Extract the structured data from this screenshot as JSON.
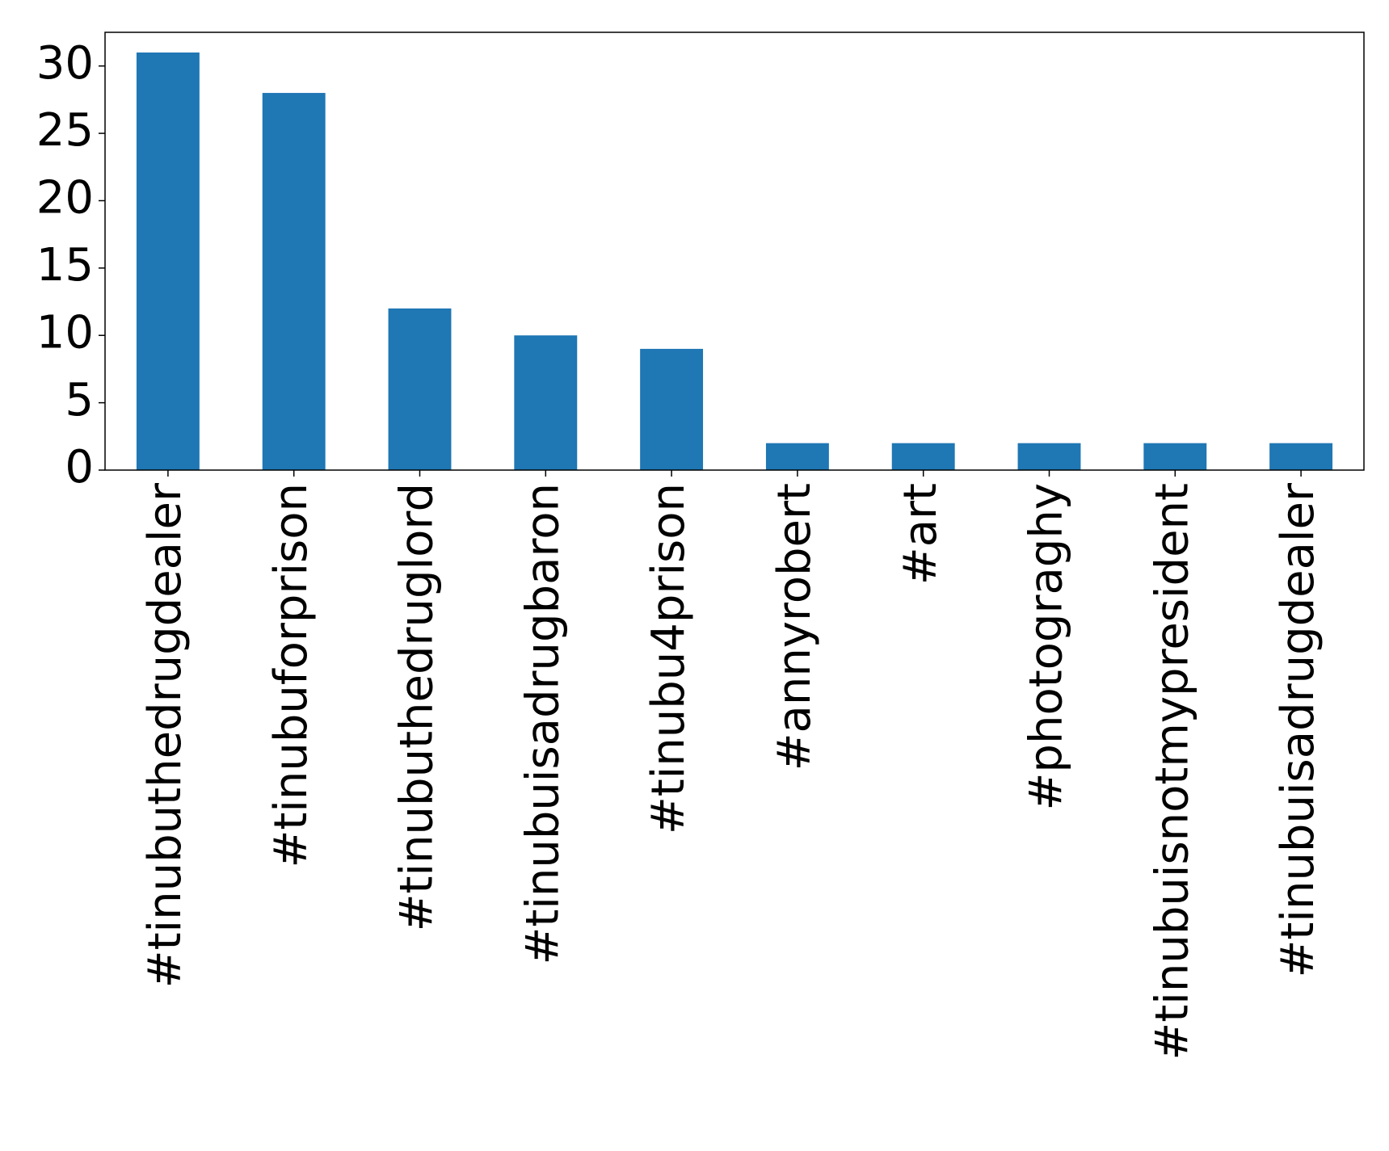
{
  "chart_data": {
    "type": "bar",
    "title": "",
    "xlabel": "",
    "ylabel": "",
    "categories": [
      "#tinubuthedrugdealer",
      "#tinubuforprison",
      "#tinubuthedruglord",
      "#tinubuisadrugbaron",
      "#tinubu4prison",
      "#annyrobert",
      "#art",
      "#photograghy",
      "#tinubuisnotmypresident",
      "#tinubuisadrugdealer"
    ],
    "values": [
      31,
      28,
      12,
      10,
      9,
      2,
      2,
      2,
      2,
      2
    ],
    "ylim": [
      0,
      32.5
    ],
    "yticks": [
      0,
      5,
      10,
      15,
      20,
      25,
      30
    ],
    "grid": false,
    "legend": "none",
    "bar_color": "#1f77b4"
  }
}
